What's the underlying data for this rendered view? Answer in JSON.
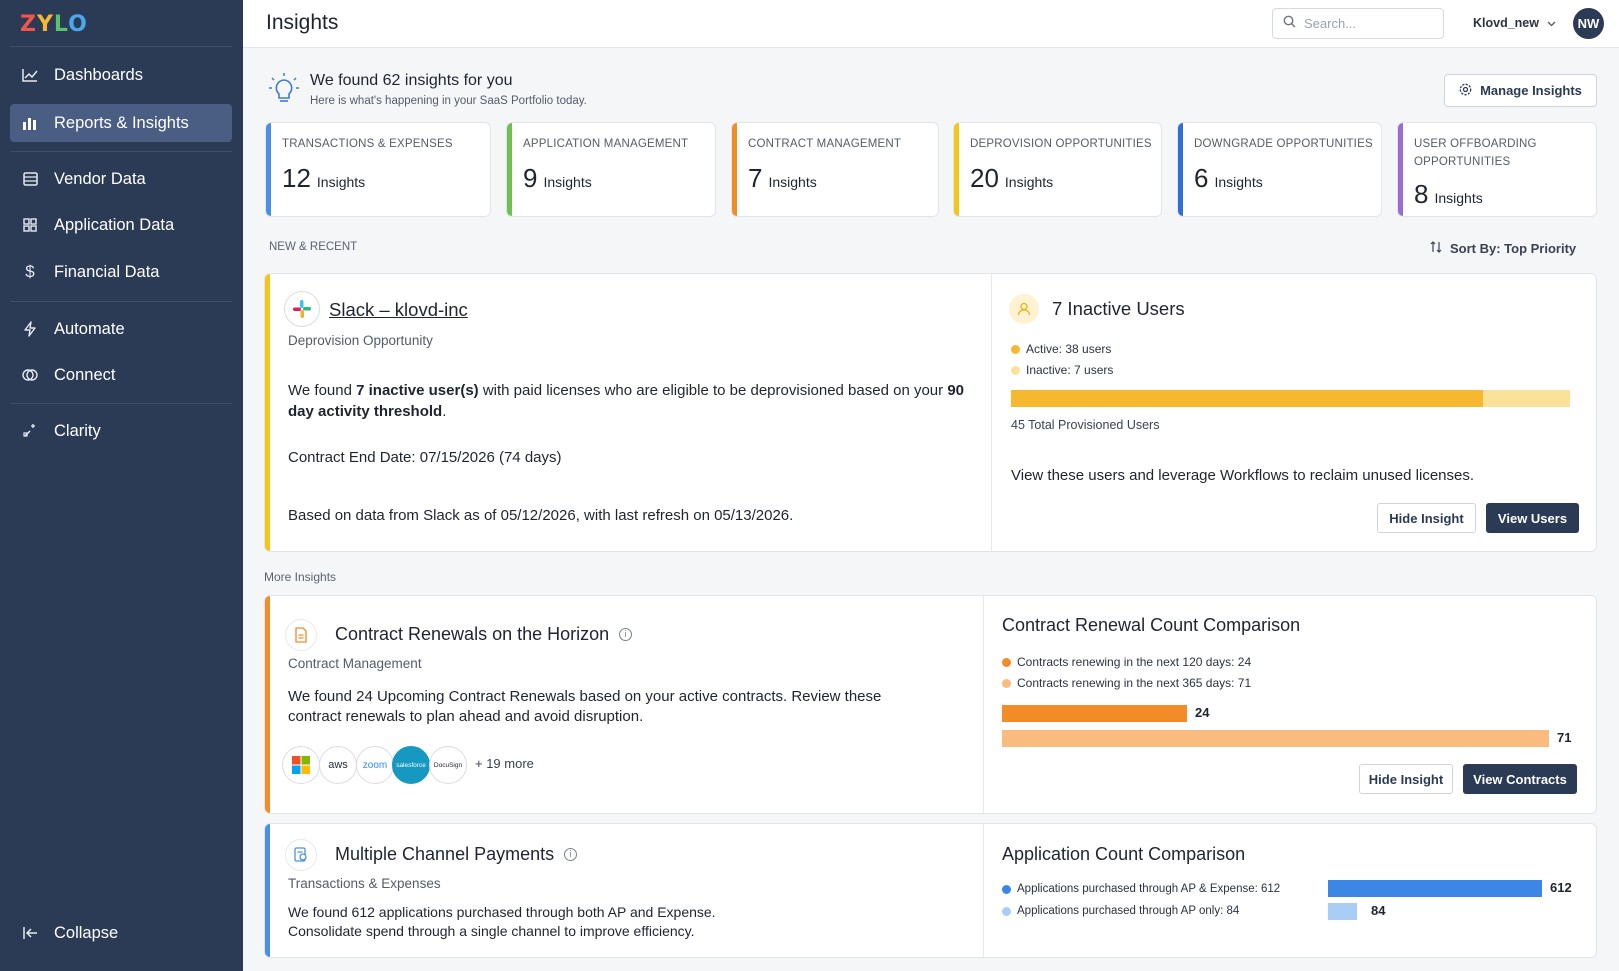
{
  "brand": {
    "logo_letters": [
      "Z",
      "Y",
      "L",
      "O"
    ]
  },
  "sidebar": {
    "items": [
      {
        "label": "Dashboards",
        "icon": "chart-line-icon"
      },
      {
        "label": "Reports & Insights",
        "icon": "bar-chart-icon",
        "active": true
      },
      {
        "label": "Vendor Data",
        "icon": "table-icon"
      },
      {
        "label": "Application Data",
        "icon": "grid-icon"
      },
      {
        "label": "Financial Data",
        "icon": "dollar-icon"
      },
      {
        "label": "Automate",
        "icon": "lightning-icon"
      },
      {
        "label": "Connect",
        "icon": "plug-icon"
      },
      {
        "label": "Clarity",
        "icon": "sparkle-icon"
      }
    ],
    "collapse_label": "Collapse"
  },
  "header": {
    "title": "Insights",
    "search_placeholder": "Search...",
    "org_name": "Klovd_new",
    "avatar_initials": "NW"
  },
  "summary": {
    "title": "We found 62 insights for you",
    "subtitle": "Here is what's happening in your SaaS Portfolio today.",
    "manage_label": "Manage Insights"
  },
  "categories": [
    {
      "label": "TRANSACTIONS & EXPENSES",
      "count": "12",
      "unit": "Insights",
      "color": "#4a90e2"
    },
    {
      "label": "APPLICATION MANAGEMENT",
      "count": "9",
      "unit": "Insights",
      "color": "#6cc24a"
    },
    {
      "label": "CONTRACT MANAGEMENT",
      "count": "7",
      "unit": "Insights",
      "color": "#f28c28"
    },
    {
      "label": "DEPROVISION OPPORTUNITIES",
      "count": "20",
      "unit": "Insights",
      "color": "#f5c518"
    },
    {
      "label": "DOWNGRADE OPPORTUNITIES",
      "count": "6",
      "unit": "Insights",
      "color": "#2f6fd6"
    },
    {
      "label": "USER OFFBOARDING OPPORTUNITIES",
      "count": "8",
      "unit": "Insights",
      "color": "#9b6bd6"
    }
  ],
  "new_recent": {
    "section_label": "NEW & RECENT",
    "sort_label": "Sort By: Top Priority",
    "card": {
      "app_name": "Slack – klovd-inc",
      "category": "Deprovision Opportunity",
      "desc_pre": "We found ",
      "desc_bold1": "7 inactive user(s)",
      "desc_mid": " with paid licenses who are eligible to be deprovisioned based on your ",
      "desc_bold2": "90 day activity threshold",
      "desc_end": ".",
      "contract_end": "Contract End Date: 07/15/2026 (74 days)",
      "data_note": "Based on data from Slack as of 05/12/2026, with last refresh on 05/13/2026.",
      "right_title": "7 Inactive Users",
      "legend_active": "Active: 38 users",
      "legend_inactive": "Inactive: 7 users",
      "active_count": 38,
      "inactive_count": 7,
      "total_label": "45 Total Provisioned Users",
      "cta_text": "View these users and leverage Workflows to reclaim unused licenses.",
      "hide_label": "Hide Insight",
      "primary_label": "View Users",
      "accent": "#f5c518"
    }
  },
  "more": {
    "section_label": "More Insights",
    "contract_card": {
      "title": "Contract Renewals on the Horizon",
      "category": "Contract Management",
      "desc": "We found 24 Upcoming Contract Renewals based on your active contracts. Review these contract renewals to plan ahead and avoid disruption.",
      "vendors": [
        "microsoft-logo",
        "aws",
        "zoom",
        "salesforce",
        "DocuSign"
      ],
      "more_label": "+ 19 more",
      "right_title": "Contract Renewal Count Comparison",
      "legend_120": "Contracts renewing in the next 120 days: 24",
      "legend_365": "Contracts renewing in the next 365 days: 71",
      "value_120": 24,
      "value_365": 71,
      "value_120_label": "24",
      "value_365_label": "71",
      "hide_label": "Hide Insight",
      "primary_label": "View Contracts",
      "accent": "#f28c28"
    },
    "payments_card": {
      "title": "Multiple Channel Payments",
      "category": "Transactions & Expenses",
      "desc_line1": "We found 612 applications purchased through both AP and Expense.",
      "desc_line2": "Consolidate spend through a single channel to improve efficiency.",
      "right_title": "Application Count Comparison",
      "legend_both": "Applications purchased through AP & Expense: 612",
      "legend_ap": "Applications purchased through AP only: 84",
      "value_both": 612,
      "value_ap": 84,
      "value_both_label": "612",
      "value_ap_label": "84",
      "accent": "#4a90e2"
    }
  },
  "colors": {
    "sidebar_bg": "#2b3a55",
    "active_bg": "#4a5d83",
    "yellow_dark": "#f5b82e",
    "yellow_light": "#fbe29a",
    "orange_dark": "#f28c28",
    "orange_light": "#f9bc7e",
    "blue_dark": "#3c86e6",
    "blue_light": "#a9cdf5"
  }
}
